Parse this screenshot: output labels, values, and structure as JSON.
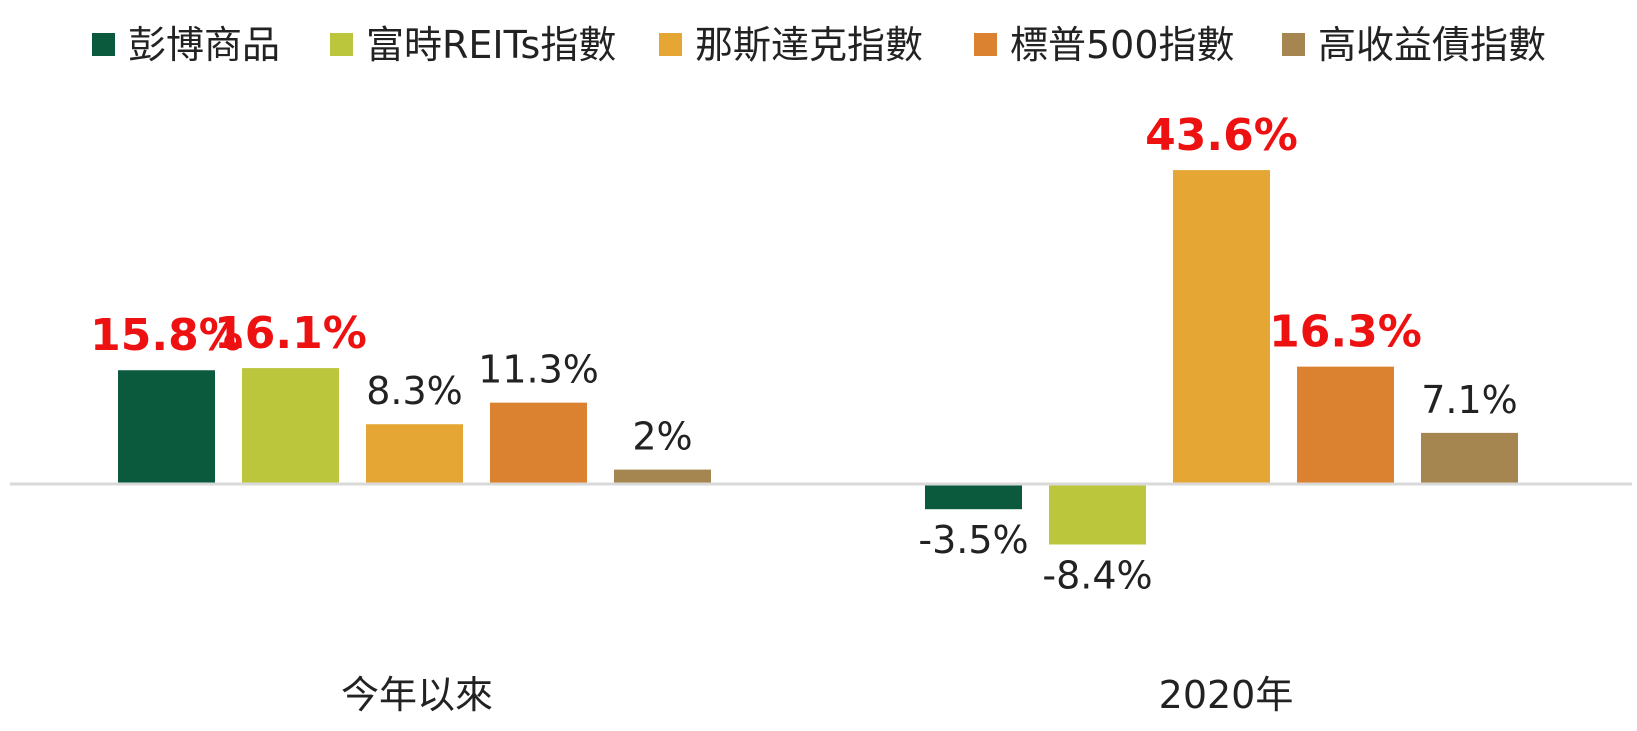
{
  "chart_data": {
    "type": "bar",
    "categories": [
      "今年以來",
      "2020年"
    ],
    "series": [
      {
        "name": "彭博商品",
        "color": "#0b5a3e",
        "values": [
          15.8,
          -3.5
        ],
        "labels": [
          "15.8%",
          "-3.5%"
        ],
        "highlight": [
          true,
          false
        ]
      },
      {
        "name": "富時REITs指數",
        "color": "#bcc63c",
        "values": [
          16.1,
          -8.4
        ],
        "labels": [
          "16.1%",
          "-8.4%"
        ],
        "highlight": [
          true,
          false
        ]
      },
      {
        "name": "那斯達克指數",
        "color": "#e5a633",
        "values": [
          8.3,
          43.6
        ],
        "labels": [
          "8.3%",
          "43.6%"
        ],
        "highlight": [
          false,
          true
        ]
      },
      {
        "name": "標普500指數",
        "color": "#db8230",
        "values": [
          11.3,
          16.3
        ],
        "labels": [
          "11.3%",
          "16.3%"
        ],
        "highlight": [
          false,
          true
        ]
      },
      {
        "name": "高收益債指數",
        "color": "#a58651",
        "values": [
          2,
          7.1
        ],
        "labels": [
          "2%",
          "7.1%"
        ],
        "highlight": [
          false,
          false
        ]
      }
    ],
    "legend_position": "top",
    "grid": false,
    "label_color": "#222222",
    "highlight_color": "#ee1111",
    "axis_line_color": "#d9d9d9"
  }
}
